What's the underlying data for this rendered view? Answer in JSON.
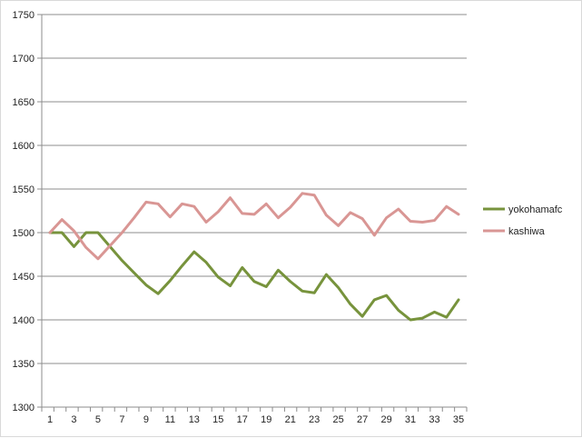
{
  "chart_data": {
    "type": "line",
    "title": "",
    "xlabel": "",
    "ylabel": "",
    "x": [
      1,
      2,
      3,
      4,
      5,
      6,
      7,
      8,
      9,
      10,
      11,
      12,
      13,
      14,
      15,
      16,
      17,
      18,
      19,
      20,
      21,
      22,
      23,
      24,
      25,
      26,
      27,
      28,
      29,
      30,
      31,
      32,
      33,
      34,
      35
    ],
    "x_tick_labels": [
      "1",
      "3",
      "5",
      "7",
      "9",
      "11",
      "13",
      "15",
      "17",
      "19",
      "21",
      "23",
      "25",
      "27",
      "29",
      "31",
      "33",
      "35"
    ],
    "ylim": [
      1300,
      1750
    ],
    "y_ticks": [
      1300,
      1350,
      1400,
      1450,
      1500,
      1550,
      1600,
      1650,
      1700,
      1750
    ],
    "grid": "horizontal",
    "legend": "right",
    "series": [
      {
        "name": "yokohamafc",
        "color": "#77933c",
        "values": [
          1500,
          1500,
          1484,
          1500,
          1500,
          1484,
          1468,
          1454,
          1440,
          1430,
          1445,
          1462,
          1478,
          1466,
          1449,
          1439,
          1460,
          1444,
          1438,
          1457,
          1444,
          1433,
          1431,
          1452,
          1437,
          1418,
          1404,
          1423,
          1428,
          1411,
          1400,
          1402,
          1409,
          1403,
          1423
        ]
      },
      {
        "name": "kashiwa",
        "color": "#d99694",
        "values": [
          1500,
          1515,
          1502,
          1483,
          1470,
          1485,
          1500,
          1517,
          1535,
          1533,
          1518,
          1533,
          1530,
          1512,
          1524,
          1540,
          1522,
          1521,
          1533,
          1517,
          1529,
          1545,
          1543,
          1520,
          1508,
          1523,
          1516,
          1497,
          1517,
          1527,
          1513,
          1512,
          1514,
          1530,
          1521
        ]
      }
    ]
  }
}
